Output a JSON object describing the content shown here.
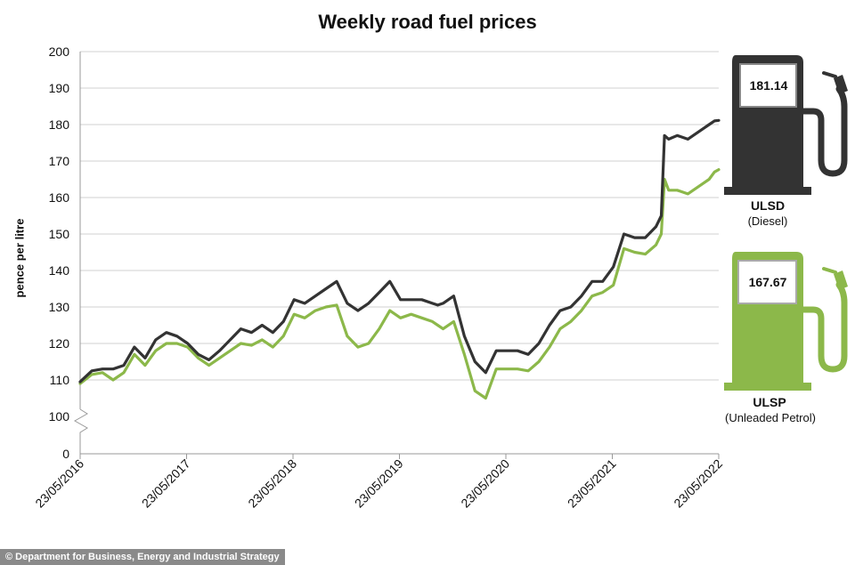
{
  "chart_data": {
    "type": "line",
    "title": "Weekly road fuel prices",
    "ylabel": "pence per litre",
    "xlabel": "",
    "x_ticks": [
      "23/05/2016",
      "23/05/2017",
      "23/05/2018",
      "23/05/2019",
      "23/05/2020",
      "23/05/2021",
      "23/05/2022"
    ],
    "y_ticks": [
      "0",
      "100",
      "110",
      "120",
      "130",
      "140",
      "150",
      "160",
      "170",
      "180",
      "190",
      "200"
    ],
    "ylim": [
      100,
      200
    ],
    "y_axis_break": true,
    "grid": true,
    "x_range": [
      2016.39,
      2022.39
    ],
    "series": [
      {
        "name": "ULSD",
        "subtitle": "(Diesel)",
        "color": "#333333",
        "latest_value": "181.14",
        "x": [
          2016.39,
          2016.5,
          2016.6,
          2016.7,
          2016.8,
          2016.9,
          2017.0,
          2017.1,
          2017.2,
          2017.3,
          2017.4,
          2017.5,
          2017.6,
          2017.7,
          2017.8,
          2017.9,
          2018.0,
          2018.1,
          2018.2,
          2018.3,
          2018.4,
          2018.5,
          2018.6,
          2018.7,
          2018.8,
          2018.9,
          2019.0,
          2019.1,
          2019.2,
          2019.3,
          2019.4,
          2019.5,
          2019.6,
          2019.7,
          2019.75,
          2019.8,
          2019.9,
          2020.0,
          2020.1,
          2020.2,
          2020.3,
          2020.4,
          2020.5,
          2020.6,
          2020.7,
          2020.8,
          2020.9,
          2021.0,
          2021.1,
          2021.2,
          2021.3,
          2021.4,
          2021.5,
          2021.6,
          2021.7,
          2021.8,
          2021.85,
          2021.88,
          2021.92,
          2022.0,
          2022.1,
          2022.2,
          2022.25,
          2022.3,
          2022.35,
          2022.39
        ],
        "y": [
          109.5,
          112.5,
          113,
          113,
          114,
          119,
          116,
          121,
          123,
          122,
          120,
          117,
          115.5,
          118,
          121,
          124,
          123,
          125,
          123,
          126,
          132,
          131,
          133,
          135,
          137,
          131,
          129,
          131,
          134,
          137,
          132,
          132,
          132,
          131,
          130.5,
          131,
          133,
          122,
          115,
          112,
          118,
          118,
          118,
          117,
          120,
          125,
          129,
          130,
          133,
          137,
          137,
          141,
          150,
          149,
          149,
          152,
          155,
          177,
          176,
          177,
          176,
          178,
          179,
          180,
          181,
          181.14
        ]
      },
      {
        "name": "ULSP",
        "subtitle": "(Unleaded Petrol)",
        "color": "#8cb84a",
        "latest_value": "167.67",
        "x": [
          2016.39,
          2016.5,
          2016.6,
          2016.7,
          2016.8,
          2016.9,
          2017.0,
          2017.1,
          2017.2,
          2017.3,
          2017.4,
          2017.5,
          2017.6,
          2017.7,
          2017.8,
          2017.9,
          2018.0,
          2018.1,
          2018.2,
          2018.3,
          2018.4,
          2018.5,
          2018.6,
          2018.7,
          2018.8,
          2018.9,
          2019.0,
          2019.1,
          2019.2,
          2019.3,
          2019.4,
          2019.5,
          2019.6,
          2019.7,
          2019.75,
          2019.8,
          2019.9,
          2020.0,
          2020.1,
          2020.2,
          2020.3,
          2020.4,
          2020.5,
          2020.6,
          2020.7,
          2020.8,
          2020.9,
          2021.0,
          2021.1,
          2021.2,
          2021.3,
          2021.4,
          2021.5,
          2021.6,
          2021.7,
          2021.8,
          2021.85,
          2021.88,
          2021.92,
          2022.0,
          2022.1,
          2022.2,
          2022.25,
          2022.3,
          2022.35,
          2022.39
        ],
        "y": [
          109,
          111.5,
          112,
          110,
          112,
          117,
          114,
          118,
          120,
          120,
          119,
          116,
          114,
          116,
          118,
          120,
          119.5,
          121,
          119,
          122,
          128,
          127,
          129,
          130,
          130.5,
          122,
          119,
          120,
          124,
          129,
          127,
          128,
          127,
          126,
          125,
          124,
          126,
          117,
          107,
          105,
          113,
          113,
          113,
          112.5,
          115,
          119,
          124,
          126,
          129,
          133,
          134,
          136,
          146,
          145,
          144.5,
          147,
          150,
          165,
          162,
          162,
          161,
          163,
          164,
          165,
          167,
          167.67
        ]
      }
    ]
  },
  "credit": "© Department for Business, Energy and Industrial Strategy"
}
